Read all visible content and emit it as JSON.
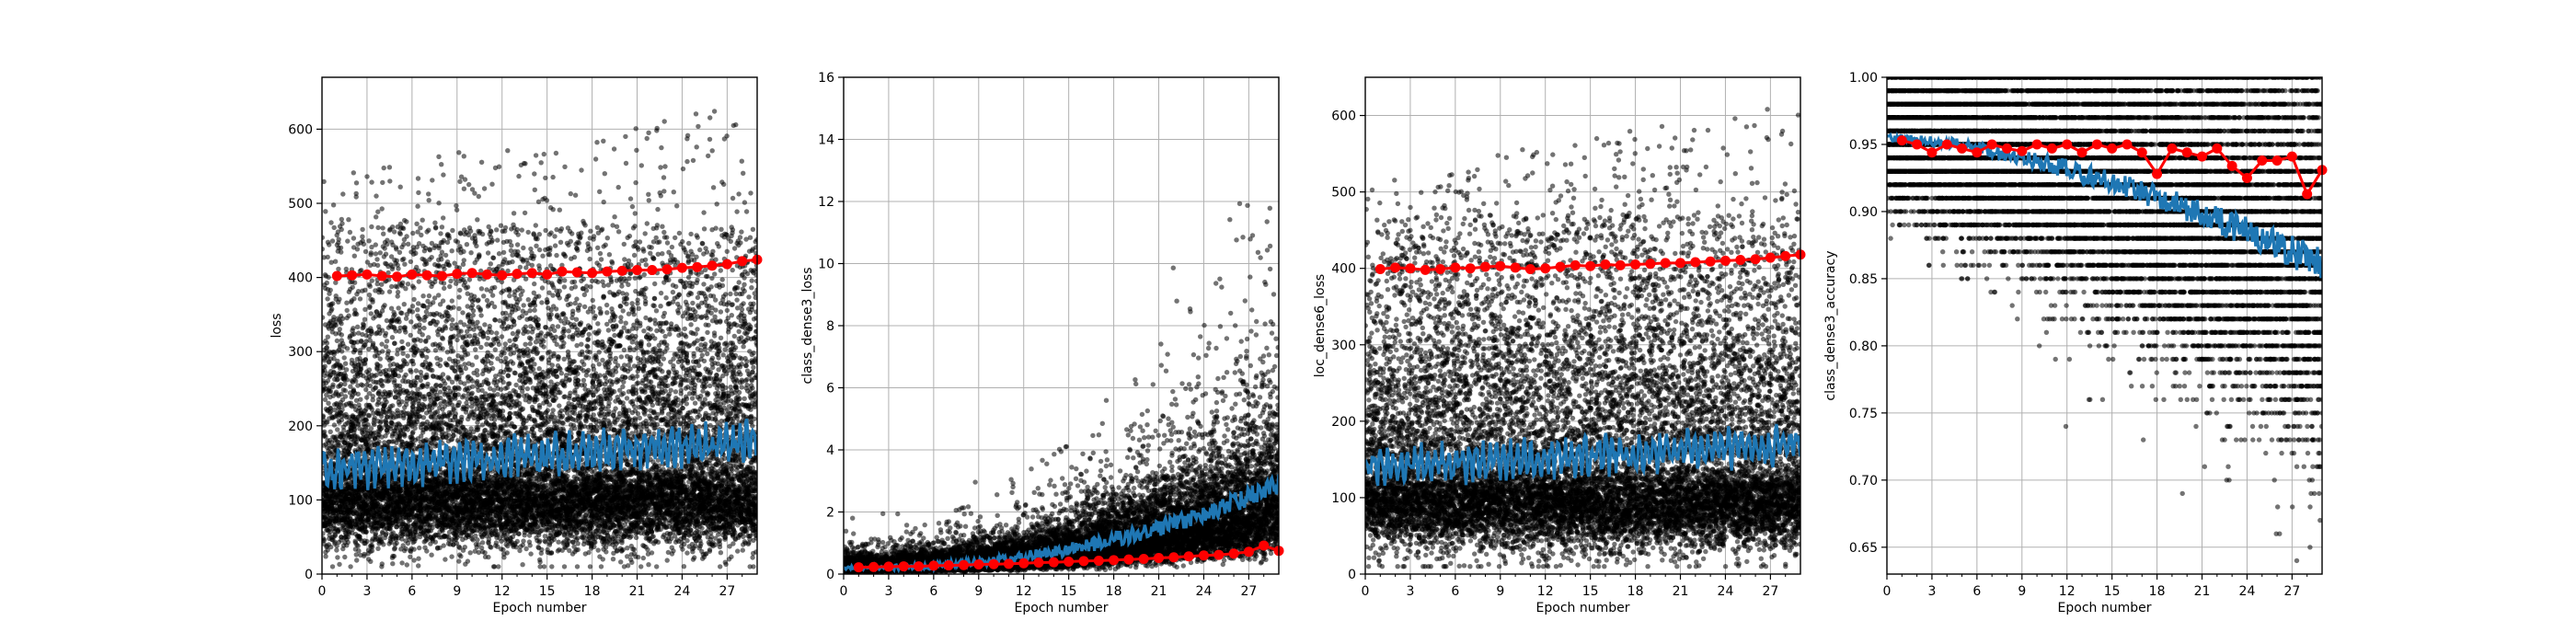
{
  "chart_data": [
    {
      "type": "scatter",
      "xlabel": "Epoch number",
      "ylabel": "loss",
      "xlim": [
        0,
        29
      ],
      "ylim": [
        0,
        670
      ],
      "xticks": [
        0,
        3,
        6,
        9,
        12,
        15,
        18,
        21,
        24,
        27
      ],
      "yticks": [
        0,
        100,
        200,
        300,
        400,
        500,
        600
      ],
      "grid": true,
      "series": [
        {
          "role": "batch-points",
          "color": "#000000",
          "epochs": 29,
          "per_epoch": 450,
          "median": 100,
          "spread": 45,
          "tail_max": 640
        },
        {
          "role": "smoothed-training",
          "color": "#1f77b4",
          "start": 140,
          "end": 180,
          "amplitude": 30
        },
        {
          "role": "validation",
          "color": "#ff0000",
          "x": [
            1,
            2,
            3,
            4,
            5,
            6,
            7,
            8,
            9,
            10,
            11,
            12,
            13,
            14,
            15,
            16,
            17,
            18,
            19,
            20,
            21,
            22,
            23,
            24,
            25,
            26,
            27,
            28,
            29
          ],
          "y": [
            402,
            403,
            404,
            402,
            401,
            404,
            403,
            402,
            405,
            406,
            404,
            403,
            405,
            406,
            404,
            408,
            407,
            406,
            408,
            409,
            410,
            410,
            411,
            413,
            414,
            416,
            418,
            422,
            424
          ]
        }
      ]
    },
    {
      "type": "scatter",
      "xlabel": "Epoch number",
      "ylabel": "class_dense3_loss",
      "xlim": [
        0,
        29
      ],
      "ylim": [
        0,
        16
      ],
      "xticks": [
        0,
        3,
        6,
        9,
        12,
        15,
        18,
        21,
        24,
        27
      ],
      "yticks": [
        0,
        2,
        4,
        6,
        8,
        10,
        12,
        14,
        16
      ],
      "grid": true,
      "series": [
        {
          "role": "batch-points",
          "color": "#000000",
          "epochs": 29,
          "per_epoch": 450
        },
        {
          "role": "smoothed-training",
          "color": "#1f77b4",
          "start": 0.2,
          "end": 2.9
        },
        {
          "role": "validation",
          "color": "#ff0000",
          "x": [
            1,
            2,
            3,
            4,
            5,
            6,
            7,
            8,
            9,
            10,
            11,
            12,
            13,
            14,
            15,
            16,
            17,
            18,
            19,
            20,
            21,
            22,
            23,
            24,
            25,
            26,
            27,
            28,
            29
          ],
          "y": [
            0.22,
            0.23,
            0.24,
            0.25,
            0.25,
            0.27,
            0.28,
            0.29,
            0.31,
            0.32,
            0.33,
            0.35,
            0.37,
            0.38,
            0.4,
            0.42,
            0.43,
            0.45,
            0.47,
            0.49,
            0.52,
            0.54,
            0.57,
            0.6,
            0.62,
            0.66,
            0.72,
            0.92,
            0.75
          ]
        }
      ]
    },
    {
      "type": "scatter",
      "xlabel": "Epoch number",
      "ylabel": "loc_dense6_loss",
      "xlim": [
        0,
        29
      ],
      "ylim": [
        0,
        650
      ],
      "xticks": [
        0,
        3,
        6,
        9,
        12,
        15,
        18,
        21,
        24,
        27
      ],
      "yticks": [
        0,
        100,
        200,
        300,
        400,
        500,
        600
      ],
      "grid": true,
      "series": [
        {
          "role": "batch-points",
          "color": "#000000",
          "epochs": 29,
          "per_epoch": 450,
          "median": 95,
          "spread": 45,
          "tail_max": 620
        },
        {
          "role": "smoothed-training",
          "color": "#1f77b4",
          "start": 140,
          "end": 170,
          "amplitude": 28
        },
        {
          "role": "validation",
          "color": "#ff0000",
          "x": [
            1,
            2,
            3,
            4,
            5,
            6,
            7,
            8,
            9,
            10,
            11,
            12,
            13,
            14,
            15,
            16,
            17,
            18,
            19,
            20,
            21,
            22,
            23,
            24,
            25,
            26,
            27,
            28,
            29
          ],
          "y": [
            399,
            401,
            400,
            398,
            399,
            401,
            400,
            402,
            403,
            401,
            399,
            400,
            402,
            404,
            403,
            405,
            404,
            405,
            406,
            407,
            407,
            408,
            409,
            410,
            411,
            412,
            414,
            416,
            418
          ]
        }
      ]
    },
    {
      "type": "scatter",
      "xlabel": "Epoch number",
      "ylabel": "class_dense3_accuracy",
      "xlim": [
        0,
        29
      ],
      "ylim": [
        0.63,
        1.0
      ],
      "xticks": [
        0,
        3,
        6,
        9,
        12,
        15,
        18,
        21,
        24,
        27
      ],
      "yticks": [
        0.65,
        0.7,
        0.75,
        0.8,
        0.85,
        0.9,
        0.95,
        1.0
      ],
      "ytick_labels": [
        "0.65",
        "0.70",
        "0.75",
        "0.80",
        "0.85",
        "0.90",
        "0.95",
        "1.00"
      ],
      "grid": true,
      "series": [
        {
          "role": "batch-points",
          "color": "#000000",
          "epochs": 29,
          "per_epoch": 450
        },
        {
          "role": "smoothed-training",
          "color": "#1f77b4",
          "start": 0.955,
          "end": 0.86
        },
        {
          "role": "validation",
          "color": "#ff0000",
          "x": [
            1,
            2,
            3,
            4,
            5,
            6,
            7,
            8,
            9,
            10,
            11,
            12,
            13,
            14,
            15,
            16,
            17,
            18,
            19,
            20,
            21,
            22,
            23,
            24,
            25,
            26,
            27,
            28,
            29
          ],
          "y": [
            0.953,
            0.95,
            0.944,
            0.95,
            0.947,
            0.944,
            0.95,
            0.947,
            0.945,
            0.95,
            0.947,
            0.95,
            0.944,
            0.95,
            0.947,
            0.95,
            0.944,
            0.928,
            0.947,
            0.944,
            0.941,
            0.947,
            0.934,
            0.925,
            0.938,
            0.938,
            0.941,
            0.913,
            0.931
          ]
        }
      ]
    }
  ]
}
